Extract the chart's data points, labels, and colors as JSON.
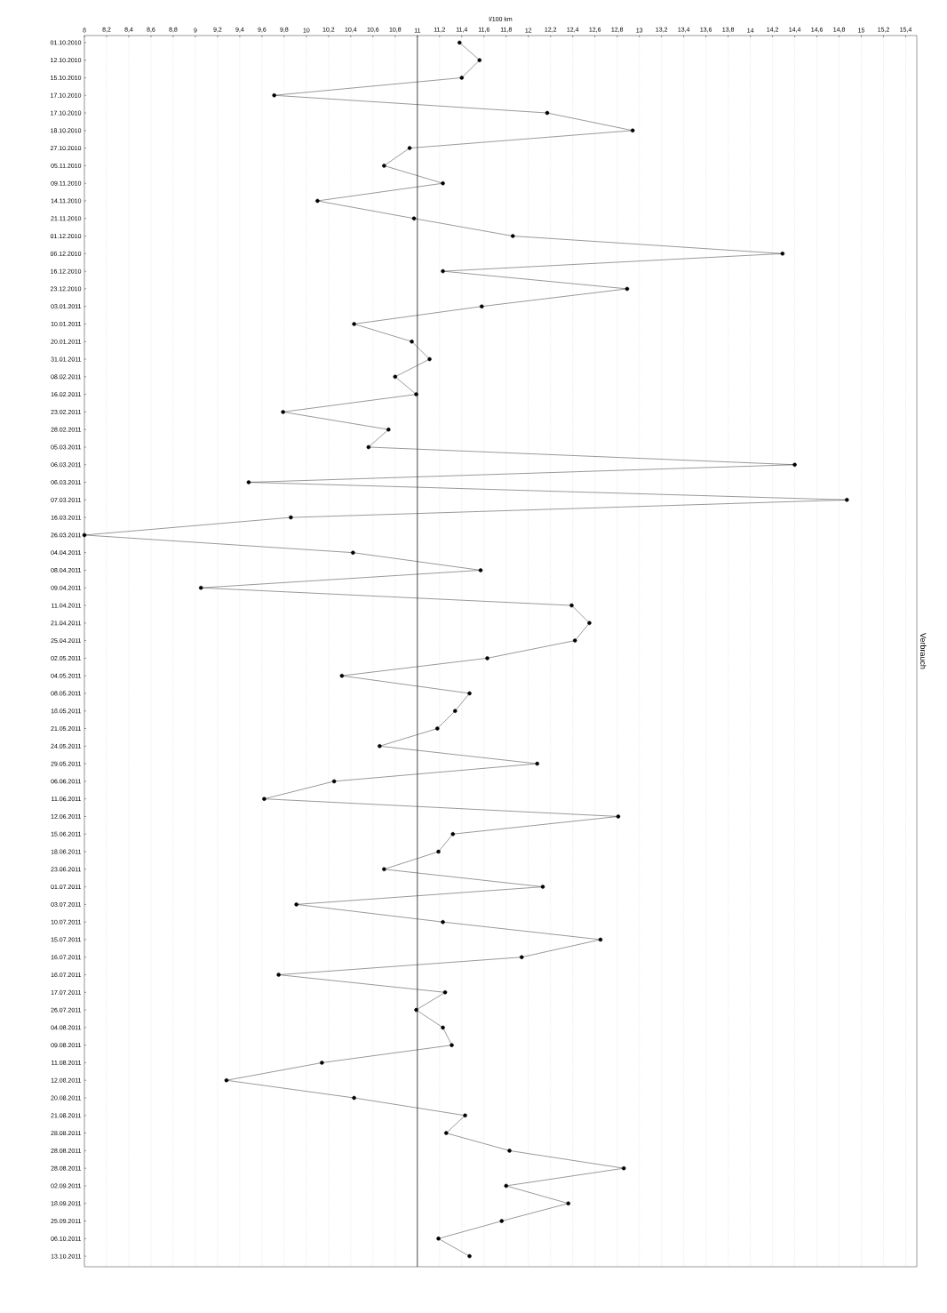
{
  "chart_data": {
    "type": "line",
    "orientation": "horizontal",
    "xlabel": "l/100 km",
    "ylabel": "Verbrauch",
    "categories": [
      "01.10.2010",
      "12.10.2010",
      "15.10.2010",
      "17.10.2010",
      "17.10.2010",
      "18.10.2010",
      "27.10.2010",
      "05.11.2010",
      "09.11.2010",
      "14.11.2010",
      "21.11.2010",
      "01.12.2010",
      "06.12.2010",
      "16.12.2010",
      "23.12.2010",
      "03.01.2011",
      "10.01.2011",
      "20.01.2011",
      "31.01.2011",
      "08.02.2011",
      "16.02.2011",
      "23.02.2011",
      "28.02.2011",
      "05.03.2011",
      "06.03.2011",
      "06.03.2011",
      "07.03.2011",
      "16.03.2011",
      "26.03.2011",
      "04.04.2011",
      "08.04.2011",
      "09.04.2011",
      "11.04.2011",
      "21.04.2011",
      "25.04.2011",
      "02.05.2011",
      "04.05.2011",
      "08.05.2011",
      "18.05.2011",
      "21.05.2011",
      "24.05.2011",
      "29.05.2011",
      "06.06.2011",
      "11.06.2011",
      "12.06.2011",
      "15.06.2011",
      "18.06.2011",
      "23.06.2011",
      "01.07.2011",
      "03.07.2011",
      "10.07.2011",
      "15.07.2011",
      "16.07.2011",
      "16.07.2011",
      "17.07.2011",
      "26.07.2011",
      "04.08.2011",
      "09.08.2011",
      "11.08.2011",
      "12.08.2011",
      "20.08.2011",
      "21.08.2011",
      "28.08.2011",
      "28.08.2011",
      "28.08.2011",
      "02.09.2011",
      "18.09.2011",
      "25.09.2011",
      "06.10.2011",
      "13.10.2011"
    ],
    "series": [
      {
        "color": "#333333",
        "values": [
          11.38,
          11.56,
          11.4,
          9.71,
          12.17,
          12.94,
          10.93,
          10.7,
          11.23,
          10.1,
          10.97,
          11.86,
          14.29,
          11.23,
          12.89,
          11.58,
          10.43,
          10.95,
          11.11,
          10.8,
          10.99,
          9.79,
          10.74,
          10.56,
          14.4,
          9.48,
          14.87,
          9.86,
          8.0,
          10.42,
          11.57,
          9.05,
          12.39,
          12.55,
          12.42,
          11.63,
          10.32,
          11.47,
          11.34,
          11.18,
          10.66,
          12.08,
          10.25,
          9.62,
          12.81,
          11.32,
          11.19,
          10.7,
          12.13,
          9.91,
          11.23,
          12.65,
          11.94,
          9.75,
          11.25,
          10.99,
          11.23,
          11.31,
          10.14,
          9.28,
          10.43,
          11.43,
          11.26,
          11.83,
          12.86,
          11.8,
          12.36,
          11.76,
          11.19,
          11.47
        ]
      }
    ],
    "xlim": [
      8,
      15.5
    ],
    "xticks": [
      8,
      {
        "value": 8.2,
        "label": "8,2"
      },
      {
        "value": 8.4,
        "label": "8,4"
      },
      {
        "value": 8.6,
        "label": "8,6"
      },
      {
        "value": 8.8,
        "label": "8,8"
      },
      9,
      {
        "value": 9.2,
        "label": "9,2"
      },
      {
        "value": 9.4,
        "label": "9,4"
      },
      {
        "value": 9.6,
        "label": "9,6"
      },
      {
        "value": 9.8,
        "label": "9,8"
      },
      10,
      {
        "value": 10.2,
        "label": "10,2"
      },
      {
        "value": 10.4,
        "label": "10,4"
      },
      {
        "value": 10.6,
        "label": "10,6"
      },
      {
        "value": 10.8,
        "label": "10,8"
      },
      11,
      {
        "value": 11.2,
        "label": "11,2"
      },
      {
        "value": 11.4,
        "label": "11,4"
      },
      {
        "value": 11.6,
        "label": "11,6"
      },
      {
        "value": 11.8,
        "label": "11,8"
      },
      12,
      {
        "value": 12.2,
        "label": "12,2"
      },
      {
        "value": 12.4,
        "label": "12,4"
      },
      {
        "value": 12.6,
        "label": "12,6"
      },
      {
        "value": 12.8,
        "label": "12,8"
      },
      13,
      {
        "value": 13.2,
        "label": "13,2"
      },
      {
        "value": 13.4,
        "label": "13,4"
      },
      {
        "value": 13.6,
        "label": "13,6"
      },
      {
        "value": 13.8,
        "label": "13,8"
      },
      14,
      {
        "value": 14.2,
        "label": "14,2"
      },
      {
        "value": 14.4,
        "label": "14,4"
      },
      {
        "value": 14.6,
        "label": "14,6"
      },
      {
        "value": 14.8,
        "label": "14,8"
      },
      15,
      {
        "value": 15.2,
        "label": "15,2"
      },
      {
        "value": 15.4,
        "label": "15,4"
      }
    ],
    "ref_lines": [
      {
        "axis": "x",
        "value": 11,
        "color": "#222222"
      }
    ],
    "grid": "x",
    "marker": "circle",
    "line_style": "solid"
  }
}
